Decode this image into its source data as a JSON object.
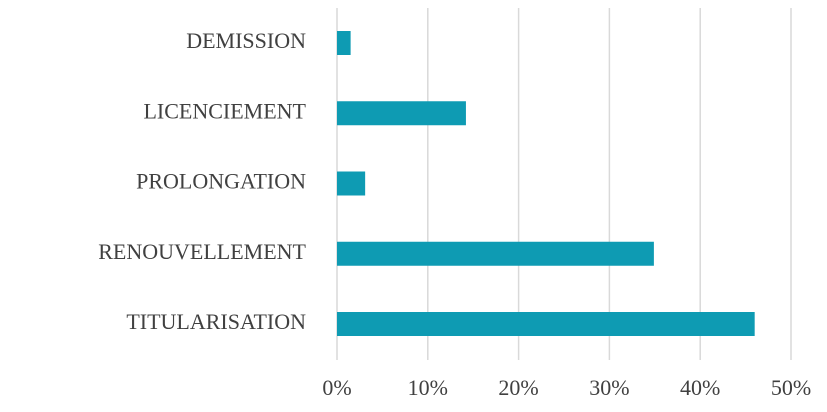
{
  "chart_data": {
    "type": "hbar",
    "categories": [
      "DEMISSION",
      "LICENCIEMENT",
      "PROLONGATION",
      "RENOUVELLEMENT",
      "TITULARISATION"
    ],
    "values": [
      1.5,
      14.2,
      3.1,
      34.9,
      46.0
    ],
    "color": "#0e9bb3",
    "xlim": [
      0,
      50
    ],
    "xticks": [
      {
        "value": 0,
        "label": "0%"
      },
      {
        "value": 10,
        "label": "10%"
      },
      {
        "value": 20,
        "label": "20%"
      },
      {
        "value": 30,
        "label": "30%"
      },
      {
        "value": 40,
        "label": "40%"
      },
      {
        "value": 50,
        "label": "50%"
      }
    ],
    "grid": true
  }
}
